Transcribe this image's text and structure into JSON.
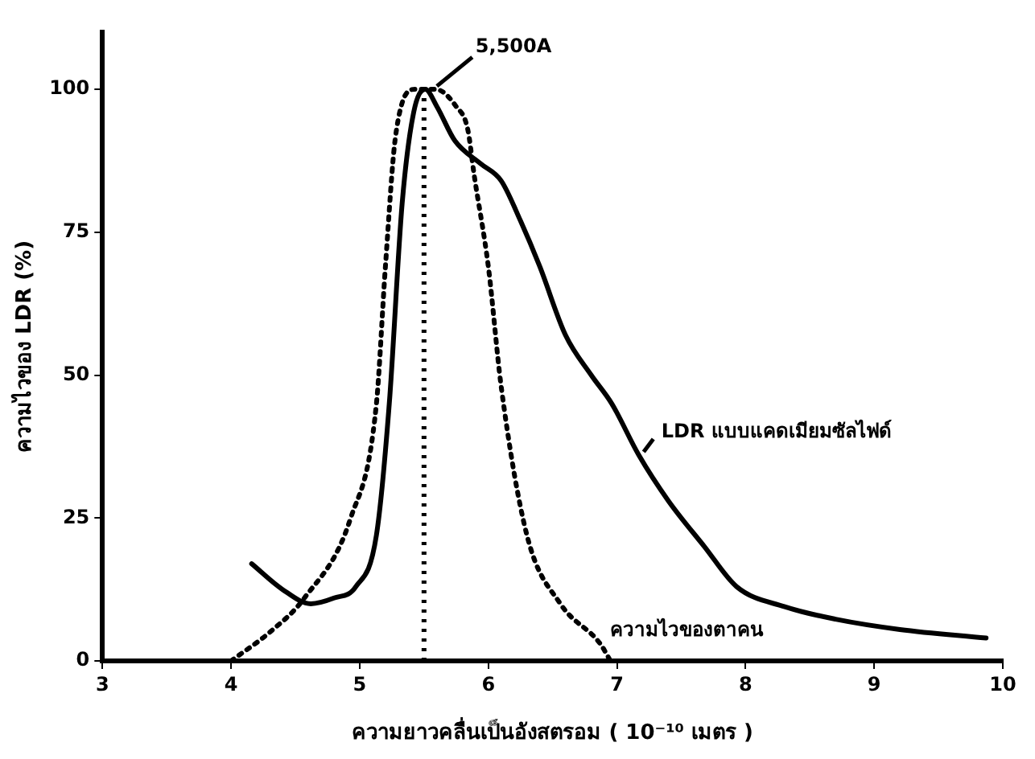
{
  "chart_data": {
    "type": "line",
    "xlabel": "ความยาวคลื่นเป็นอังสตรอม ( 10⁻¹⁰ เมตร )",
    "ylabel": "ความไวของ LDR (%)",
    "xlim": [
      3,
      10
    ],
    "xticks": [
      3,
      4,
      5,
      6,
      7,
      8,
      9,
      10
    ],
    "ylim": [
      0,
      110
    ],
    "yticks": [
      0,
      25,
      50,
      75,
      100
    ],
    "grid": false,
    "legend": false,
    "marker": "none",
    "series": [
      {
        "name": "LDR แบบแคดเมียมซัลไฟด์",
        "color": "#000000",
        "line_style": "solid",
        "x": [
          4.16,
          4.4,
          4.62,
          4.8,
          4.97,
          5.13,
          5.23,
          5.33,
          5.42,
          5.51,
          5.6,
          5.74,
          5.94,
          6.1,
          6.25,
          6.4,
          6.6,
          6.8,
          6.96,
          7.17,
          7.4,
          7.68,
          7.93,
          8.3,
          8.7,
          9.2,
          9.87
        ],
        "values": [
          17,
          12.5,
          10,
          11,
          13,
          22,
          45,
          80,
          96,
          100,
          97,
          91,
          87,
          84,
          77,
          69,
          57,
          50,
          45,
          36,
          28,
          20,
          13,
          9.5,
          7.3,
          5.5,
          4
        ]
      },
      {
        "name": "ความไวของตาคน",
        "color": "#000000",
        "line_style": "dotted",
        "x": [
          4.0,
          4.3,
          4.57,
          4.93,
          5.13,
          5.2,
          5.28,
          5.43,
          5.59,
          5.75,
          5.84,
          5.89,
          6.0,
          6.1,
          6.3,
          6.56,
          6.87,
          6.95
        ],
        "values": [
          0,
          5,
          11,
          25,
          45,
          69,
          92,
          100,
          100,
          97,
          93,
          85,
          69,
          48,
          22,
          10,
          3,
          0
        ]
      }
    ],
    "ref_lines": [
      {
        "axis": "x",
        "value": 5.5,
        "line_style": "dotted",
        "color": "#000000"
      }
    ],
    "annotations": [
      {
        "text": "5,500A",
        "x": 5.55,
        "y": 100
      }
    ]
  }
}
